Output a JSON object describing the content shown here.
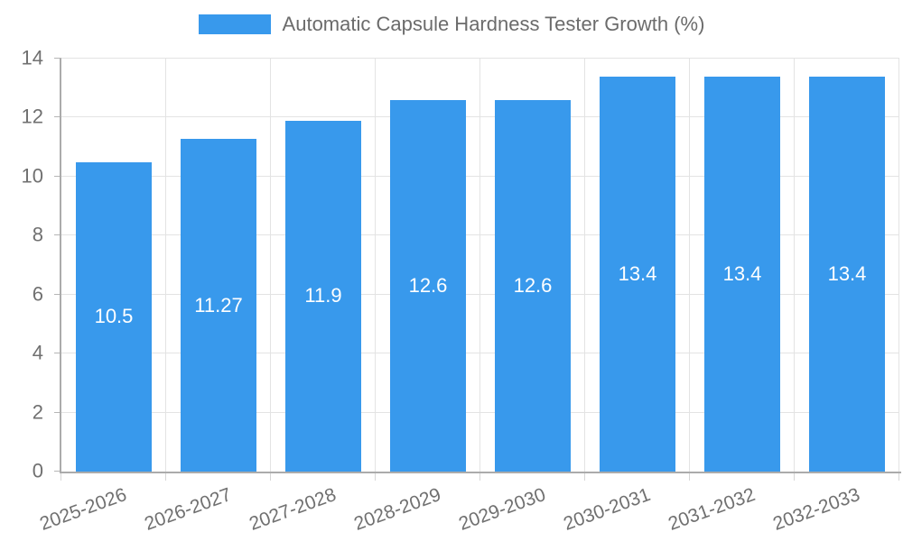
{
  "chart_data": {
    "type": "bar",
    "title": "Automatic Capsule Hardness Tester Growth (%)",
    "categories": [
      "2025-2026",
      "2026-2027",
      "2027-2028",
      "2028-2029",
      "2029-2030",
      "2030-2031",
      "2031-2032",
      "2032-2033"
    ],
    "values": [
      10.5,
      11.27,
      11.9,
      12.6,
      12.6,
      13.4,
      13.4,
      13.4
    ],
    "value_labels": [
      "10.5",
      "11.27",
      "11.9",
      "12.6",
      "12.6",
      "13.4",
      "13.4",
      "13.4"
    ],
    "xlabel": "",
    "ylabel": "",
    "ylim": [
      0,
      14
    ],
    "y_ticks": [
      0,
      2,
      4,
      6,
      8,
      10,
      12,
      14
    ],
    "grid": true,
    "legend_position": "top",
    "colors": {
      "bar": "#3899ec",
      "gridline": "#e3e3e3",
      "axis_line": "#ababab",
      "y_tick_mark": "#b5b5b5",
      "x_tick_mark": "#d6d6d6",
      "tick_label": "#707070",
      "legend_label": "#6b6b6b",
      "value_label": "#ffffff",
      "background": "#ffffff"
    }
  }
}
